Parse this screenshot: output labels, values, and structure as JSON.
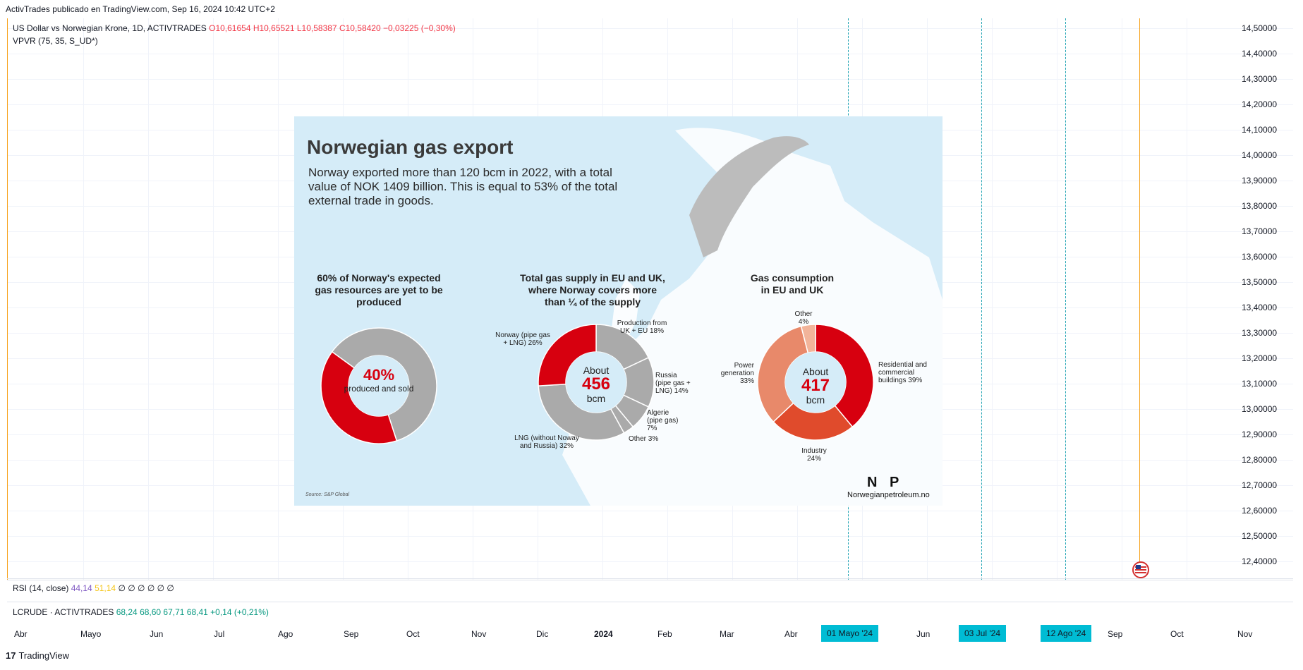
{
  "header": {
    "publisher": "ActivTrades publicado en TradingView.com, Sep 16, 2024 10:42 UTC+2"
  },
  "symbol": {
    "name": "US Dollar vs Norwegian Krone, 1D, ACTIVTRADES",
    "ohlc": "O10,61654  H10,65521  L10,58387  C10,58420  −0,03225 (−0,30%)",
    "indicator": "VPVR (75, 35, S_UD*)"
  },
  "price_axis": [
    "14,50000",
    "14,40000",
    "14,30000",
    "14,20000",
    "14,10000",
    "14,00000",
    "13,90000",
    "13,80000",
    "13,70000",
    "13,60000",
    "13,50000",
    "13,40000",
    "13,30000",
    "13,20000",
    "13,10000",
    "13,00000",
    "12,90000",
    "12,80000",
    "12,70000",
    "12,60000",
    "12,50000",
    "12,40000"
  ],
  "rsi": {
    "label": "RSI (14, close)",
    "v1": "44,14",
    "v2": "51,14",
    "rest": "∅ ∅ ∅ ∅ ∅ ∅"
  },
  "lcrude": {
    "label": "LCRUDE · ACTIVTRADES",
    "values": "68,24  68,60  67,71  68,41  +0,14 (+0,21%)"
  },
  "time_axis": [
    "Abr",
    "Mayo",
    "Jun",
    "Jul",
    "Ago",
    "Sep",
    "Oct",
    "Nov",
    "Dic",
    "2024",
    "Feb",
    "Mar",
    "Abr",
    "Jun",
    "A",
    "Sep",
    "Oct",
    "Nov"
  ],
  "time_badges": [
    "01 Mayo '24",
    "03 Jul '24",
    "12 Ago '24"
  ],
  "footer": {
    "brand": "TradingView"
  },
  "infographic": {
    "title": "Norwegian gas export",
    "subtitle": "Norway exported more than 120 bcm in 2022, with a total value of NOK 1409 billion. This is equal to 53% of the total external trade in goods.",
    "chart1_title": "60% of Norway's expected gas resources are yet to be produced",
    "chart1_big": "40%",
    "chart1_small": "produced and sold",
    "chart2_title": "Total gas supply in EU and UK, where Norway covers more than ¼ of the supply",
    "chart2_about": "About",
    "chart2_value": "456",
    "chart2_unit": "bcm",
    "chart3_title": "Gas consumption in EU and UK",
    "chart3_about": "About",
    "chart3_value": "417",
    "chart3_unit": "bcm",
    "source": "Source: S&P Global",
    "logo": "N P",
    "site": "Norwegianpetroleum.no",
    "labels2": {
      "norway": "Norway (pipe gas + LNG) 26%",
      "prod": "Production from UK + EU 18%",
      "russia": "Russia (pipe gas + LNG) 14%",
      "algerie": "Algerie (pipe gas) 7%",
      "other": "Other 3%",
      "lng": "LNG (without Noway and Russia) 32%"
    },
    "labels3": {
      "other": "Other 4%",
      "power": "Power generation 33%",
      "res": "Residential and commercial buildings 39%",
      "ind": "Industry 24%"
    }
  },
  "chart_data": [
    {
      "type": "pie",
      "categories": [
        "produced and sold",
        "yet to be produced"
      ],
      "values": [
        40,
        60
      ]
    },
    {
      "type": "pie",
      "categories": [
        "Norway (pipe gas + LNG)",
        "Production from UK + EU",
        "Russia (pipe gas + LNG)",
        "Algerie (pipe gas)",
        "Other",
        "LNG (without Noway and Russia)"
      ],
      "values": [
        26,
        18,
        14,
        7,
        3,
        32
      ]
    },
    {
      "type": "pie",
      "categories": [
        "Residential and commercial buildings",
        "Industry",
        "Power generation",
        "Other"
      ],
      "values": [
        39,
        24,
        33,
        4
      ]
    }
  ],
  "colors": {
    "red": "#d7000f",
    "gray": "#aaaaaa",
    "orange": "#e8896a",
    "darkorange": "#e04b2c",
    "peach": "#f2b49a"
  }
}
